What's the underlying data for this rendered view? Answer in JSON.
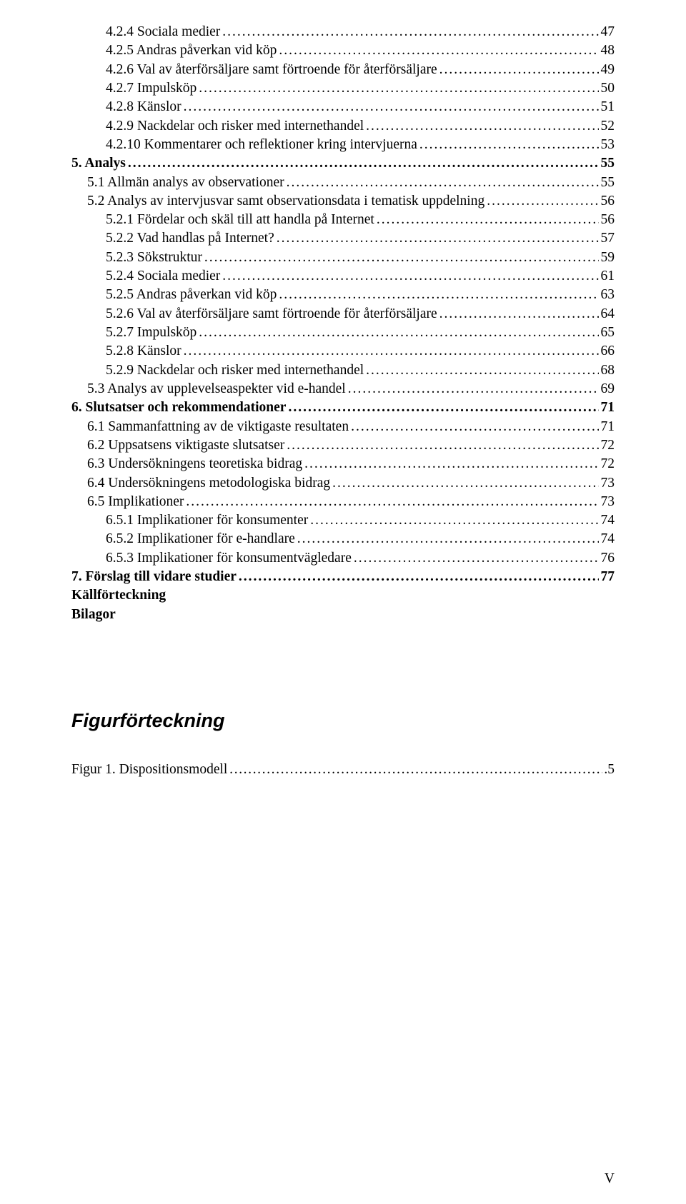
{
  "toc": [
    {
      "title": "4.2.4 Sociala medier",
      "page": "47",
      "bold": false,
      "indent": 2
    },
    {
      "title": "4.2.5 Andras påverkan vid köp",
      "page": "48",
      "bold": false,
      "indent": 2
    },
    {
      "title": "4.2.6 Val av återförsäljare samt förtroende för återförsäljare",
      "page": "49",
      "bold": false,
      "indent": 2
    },
    {
      "title": "4.2.7 Impulsköp",
      "page": "50",
      "bold": false,
      "indent": 2
    },
    {
      "title": "4.2.8 Känslor",
      "page": "51",
      "bold": false,
      "indent": 2
    },
    {
      "title": "4.2.9 Nackdelar och risker med internethandel",
      "page": "52",
      "bold": false,
      "indent": 2
    },
    {
      "title": "4.2.10 Kommentarer och reflektioner kring intervjuerna",
      "page": "53",
      "bold": false,
      "indent": 2
    },
    {
      "title": "5. Analys",
      "page": "55",
      "bold": true,
      "indent": 0
    },
    {
      "title": "5.1 Allmän analys av observationer",
      "page": "55",
      "bold": false,
      "indent": 1
    },
    {
      "title": "5.2 Analys av intervjusvar samt observationsdata i tematisk uppdelning",
      "page": "56",
      "bold": false,
      "indent": 1
    },
    {
      "title": "5.2.1 Fördelar och skäl till att handla på Internet",
      "page": "56",
      "bold": false,
      "indent": 2
    },
    {
      "title": "5.2.2 Vad handlas på Internet?",
      "page": "57",
      "bold": false,
      "indent": 2
    },
    {
      "title": "5.2.3 Sökstruktur",
      "page": "59",
      "bold": false,
      "indent": 2
    },
    {
      "title": "5.2.4 Sociala medier",
      "page": "61",
      "bold": false,
      "indent": 2
    },
    {
      "title": "5.2.5 Andras påverkan vid köp",
      "page": "63",
      "bold": false,
      "indent": 2
    },
    {
      "title": "5.2.6 Val av återförsäljare samt förtroende för återförsäljare",
      "page": "64",
      "bold": false,
      "indent": 2
    },
    {
      "title": "5.2.7 Impulsköp",
      "page": "65",
      "bold": false,
      "indent": 2
    },
    {
      "title": "5.2.8 Känslor",
      "page": "66",
      "bold": false,
      "indent": 2
    },
    {
      "title": "5.2.9 Nackdelar och risker med internethandel",
      "page": "68",
      "bold": false,
      "indent": 2
    },
    {
      "title": "5.3 Analys av upplevelseaspekter vid e-handel",
      "page": "69",
      "bold": false,
      "indent": 1
    },
    {
      "title": "6. Slutsatser och rekommendationer",
      "page": "71",
      "bold": true,
      "indent": 0
    },
    {
      "title": "6.1 Sammanfattning av de viktigaste resultaten",
      "page": "71",
      "bold": false,
      "indent": 1
    },
    {
      "title": "6.2 Uppsatsens viktigaste slutsatser",
      "page": "72",
      "bold": false,
      "indent": 1
    },
    {
      "title": "6.3 Undersökningens teoretiska bidrag",
      "page": "72",
      "bold": false,
      "indent": 1
    },
    {
      "title": "6.4 Undersökningens metodologiska bidrag",
      "page": "73",
      "bold": false,
      "indent": 1
    },
    {
      "title": "6.5 Implikationer",
      "page": "73",
      "bold": false,
      "indent": 1
    },
    {
      "title": "6.5.1 Implikationer för konsumenter",
      "page": "74",
      "bold": false,
      "indent": 2
    },
    {
      "title": "6.5.2 Implikationer för e-handlare",
      "page": "74",
      "bold": false,
      "indent": 2
    },
    {
      "title": "6.5.3 Implikationer för konsumentvägledare",
      "page": "76",
      "bold": false,
      "indent": 2
    },
    {
      "title": "7. Förslag till vidare studier",
      "page": "77",
      "bold": true,
      "indent": 0
    }
  ],
  "plain_entries": [
    {
      "text": "Källförteckning",
      "bold": true
    },
    {
      "text": "Bilagor",
      "bold": true
    }
  ],
  "figure_heading": "Figurförteckning",
  "figures": [
    {
      "title": "Figur 1. Dispositionsmodell",
      "page": "5"
    }
  ],
  "page_number": "V",
  "colors": {
    "background": "#ffffff",
    "text": "#000000"
  },
  "typography": {
    "body_font": "Times New Roman",
    "body_size_pt": 15,
    "heading_font": "Arial",
    "heading_size_pt": 20,
    "heading_bold": true,
    "heading_italic": true
  }
}
